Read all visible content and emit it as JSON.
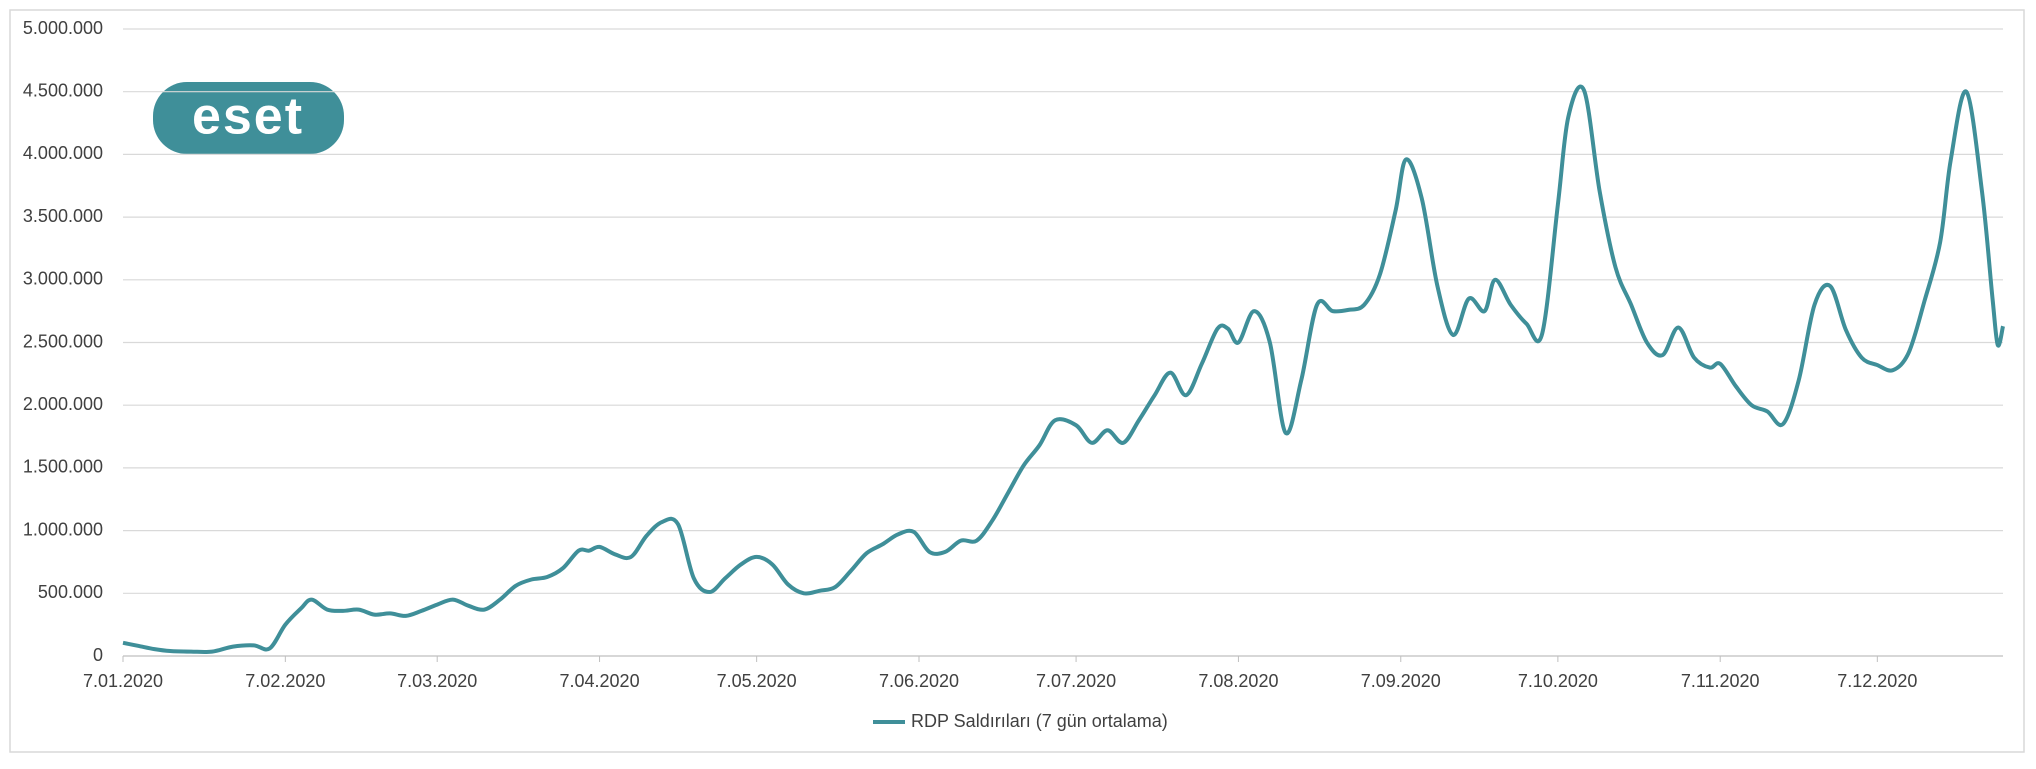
{
  "logo": "eset",
  "chart_data": {
    "type": "line",
    "x": [
      "2020-01-07",
      "2020-01-10",
      "2020-01-13",
      "2020-01-16",
      "2020-01-20",
      "2020-01-24",
      "2020-01-28",
      "2020-02-01",
      "2020-02-04",
      "2020-02-07",
      "2020-02-10",
      "2020-02-12",
      "2020-02-15",
      "2020-02-18",
      "2020-02-21",
      "2020-02-24",
      "2020-02-27",
      "2020-03-01",
      "2020-03-04",
      "2020-03-07",
      "2020-03-10",
      "2020-03-13",
      "2020-03-16",
      "2020-03-19",
      "2020-03-22",
      "2020-03-25",
      "2020-03-28",
      "2020-03-31",
      "2020-04-03",
      "2020-04-05",
      "2020-04-07",
      "2020-04-10",
      "2020-04-13",
      "2020-04-16",
      "2020-04-19",
      "2020-04-22",
      "2020-04-25",
      "2020-04-28",
      "2020-05-01",
      "2020-05-04",
      "2020-05-07",
      "2020-05-10",
      "2020-05-13",
      "2020-05-16",
      "2020-05-19",
      "2020-05-22",
      "2020-05-25",
      "2020-05-28",
      "2020-05-31",
      "2020-06-03",
      "2020-06-06",
      "2020-06-09",
      "2020-06-12",
      "2020-06-15",
      "2020-06-18",
      "2020-06-21",
      "2020-06-24",
      "2020-06-27",
      "2020-06-30",
      "2020-07-03",
      "2020-07-07",
      "2020-07-10",
      "2020-07-13",
      "2020-07-16",
      "2020-07-19",
      "2020-07-22",
      "2020-07-25",
      "2020-07-28",
      "2020-07-31",
      "2020-08-03",
      "2020-08-05",
      "2020-08-07",
      "2020-08-10",
      "2020-08-13",
      "2020-08-16",
      "2020-08-19",
      "2020-08-22",
      "2020-08-25",
      "2020-08-28",
      "2020-08-31",
      "2020-09-03",
      "2020-09-06",
      "2020-09-08",
      "2020-09-11",
      "2020-09-14",
      "2020-09-17",
      "2020-09-20",
      "2020-09-23",
      "2020-09-25",
      "2020-09-28",
      "2020-10-01",
      "2020-10-04",
      "2020-10-07",
      "2020-10-09",
      "2020-10-12",
      "2020-10-15",
      "2020-10-18",
      "2020-10-21",
      "2020-10-24",
      "2020-10-27",
      "2020-10-30",
      "2020-11-02",
      "2020-11-05",
      "2020-11-07",
      "2020-11-10",
      "2020-11-13",
      "2020-11-16",
      "2020-11-19",
      "2020-11-22",
      "2020-11-25",
      "2020-11-28",
      "2020-12-01",
      "2020-12-04",
      "2020-12-07",
      "2020-12-10",
      "2020-12-13",
      "2020-12-16",
      "2020-12-19",
      "2020-12-21",
      "2020-12-24",
      "2020-12-27",
      "2020-12-29",
      "2020-12-30",
      "2020-12-31"
    ],
    "series": [
      {
        "name": "RDP Saldırıları (7 gün ortalama)",
        "color": "#3f8f99",
        "values": [
          105000,
          80000,
          55000,
          40000,
          35000,
          35000,
          75000,
          85000,
          60000,
          250000,
          380000,
          450000,
          370000,
          360000,
          370000,
          330000,
          340000,
          320000,
          360000,
          410000,
          450000,
          400000,
          370000,
          450000,
          560000,
          610000,
          630000,
          700000,
          840000,
          840000,
          870000,
          810000,
          790000,
          960000,
          1070000,
          1050000,
          620000,
          510000,
          620000,
          730000,
          790000,
          730000,
          570000,
          500000,
          520000,
          550000,
          680000,
          820000,
          890000,
          970000,
          990000,
          830000,
          830000,
          920000,
          920000,
          1080000,
          1300000,
          1520000,
          1680000,
          1880000,
          1840000,
          1700000,
          1800000,
          1700000,
          1880000,
          2080000,
          2260000,
          2080000,
          2330000,
          2610000,
          2610000,
          2500000,
          2750000,
          2500000,
          1780000,
          2200000,
          2800000,
          2750000,
          2760000,
          2800000,
          3040000,
          3550000,
          3960000,
          3650000,
          2950000,
          2560000,
          2850000,
          2750000,
          3000000,
          2800000,
          2650000,
          2570000,
          3600000,
          4300000,
          4510000,
          3700000,
          3100000,
          2800000,
          2500000,
          2400000,
          2620000,
          2380000,
          2300000,
          2330000,
          2150000,
          2000000,
          1950000,
          1850000,
          2200000,
          2800000,
          2950000,
          2600000,
          2380000,
          2320000,
          2280000,
          2420000,
          2830000,
          3300000,
          3950000,
          4500000,
          3700000,
          2850000,
          2480000,
          2630000
        ]
      }
    ],
    "xlim": [
      "2020-01-07",
      "2020-12-31"
    ],
    "xticks": [
      {
        "value": "2020-01-07",
        "label": "7.01.2020"
      },
      {
        "value": "2020-02-07",
        "label": "7.02.2020"
      },
      {
        "value": "2020-03-07",
        "label": "7.03.2020"
      },
      {
        "value": "2020-04-07",
        "label": "7.04.2020"
      },
      {
        "value": "2020-05-07",
        "label": "7.05.2020"
      },
      {
        "value": "2020-06-07",
        "label": "7.06.2020"
      },
      {
        "value": "2020-07-07",
        "label": "7.07.2020"
      },
      {
        "value": "2020-08-07",
        "label": "7.08.2020"
      },
      {
        "value": "2020-09-07",
        "label": "7.09.2020"
      },
      {
        "value": "2020-10-07",
        "label": "7.10.2020"
      },
      {
        "value": "2020-11-07",
        "label": "7.11.2020"
      },
      {
        "value": "2020-12-07",
        "label": "7.12.2020"
      }
    ],
    "ylim": [
      0,
      5000000
    ],
    "yticks": [
      0,
      {
        "value": 500000,
        "label": "500.000"
      },
      {
        "value": 1000000,
        "label": "1.000.000"
      },
      {
        "value": 1500000,
        "label": "1.500.000"
      },
      {
        "value": 2000000,
        "label": "2.000.000"
      },
      {
        "value": 2500000,
        "label": "2.500.000"
      },
      {
        "value": 3000000,
        "label": "3.000.000"
      },
      {
        "value": 3500000,
        "label": "3.500.000"
      },
      {
        "value": 4000000,
        "label": "4.000.000"
      },
      {
        "value": 4500000,
        "label": "4.500.000"
      },
      {
        "value": 5000000,
        "label": "5.000.000"
      }
    ],
    "grid": true,
    "legend": "bottom"
  }
}
